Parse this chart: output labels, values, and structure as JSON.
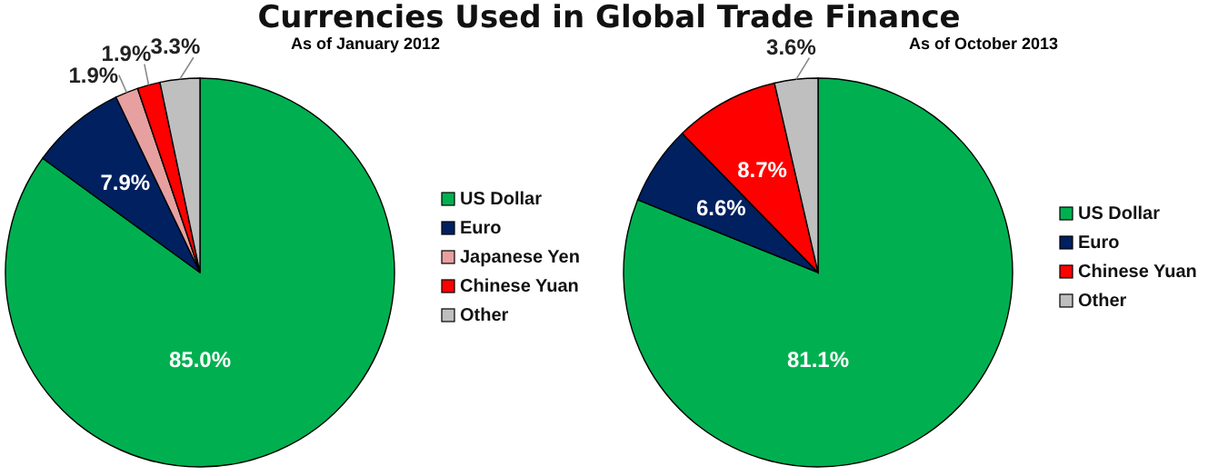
{
  "chart_data": [
    {
      "type": "pie",
      "title": "Currencies Used in Global Trade Finance",
      "subtitle": "As of January 2012",
      "categories": [
        "US Dollar",
        "Euro",
        "Japanese  Yen",
        "Chinese Yuan",
        "Other"
      ],
      "values": [
        85.0,
        7.9,
        1.9,
        1.9,
        3.3
      ],
      "value_labels": [
        "85.0%",
        "7.9%",
        "1.9%",
        "1.9%",
        "3.3%"
      ],
      "colors": [
        "#00b050",
        "#002060",
        "#e6a0a0",
        "#ff0000",
        "#bfbfbf"
      ],
      "legend": "right"
    },
    {
      "type": "pie",
      "subtitle": "As of October 2013",
      "categories": [
        "US Dollar",
        "Euro",
        "Chinese Yuan",
        "Other"
      ],
      "values": [
        81.1,
        6.6,
        8.7,
        3.6
      ],
      "value_labels": [
        "81.1%",
        "6.6%",
        "8.7%",
        "3.6%"
      ],
      "colors": [
        "#00b050",
        "#002060",
        "#ff0000",
        "#bfbfbf"
      ],
      "legend": "right"
    }
  ]
}
